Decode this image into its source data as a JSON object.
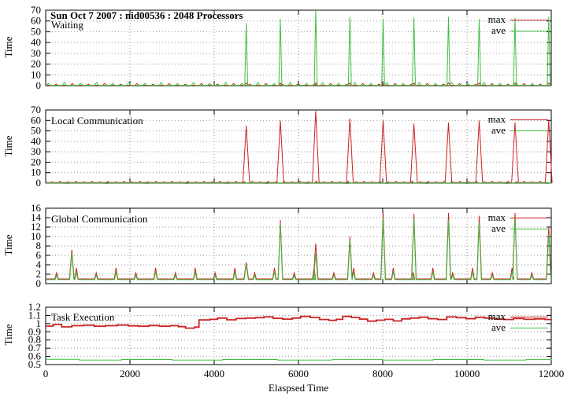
{
  "figure": {
    "title": "Sun Oct 7 2007 : nid00536 : 2048 Processors",
    "xlabel": "Elaspsed Time",
    "ylabel": "Time",
    "legend": [
      {
        "name": "max",
        "key": "max"
      },
      {
        "name": "ave",
        "key": "ave"
      }
    ],
    "colors": {
      "max": "#cc2222",
      "ave": "#3fbf3f",
      "grid": "#909090",
      "axis": "#000000"
    }
  },
  "chart_data": [
    {
      "type": "line",
      "label": "Waiting",
      "xlim": [
        0,
        12000
      ],
      "ylim": [
        0,
        70
      ],
      "xticks": [
        0,
        2000,
        4000,
        6000,
        8000,
        10000,
        12000
      ],
      "yticks": [
        0,
        10,
        20,
        30,
        40,
        50,
        60,
        70
      ],
      "grid": true,
      "legend_position": "top-right",
      "series": [
        {
          "name": "max",
          "base": 0.4,
          "lw": 1,
          "bumps": {
            "from": 250,
            "to": 11900,
            "every": 383,
            "h": 1.7,
            "w": 90
          },
          "spike_w": 80,
          "spikes": [
            [
              4760,
              2.5
            ],
            [
              5570,
              2.5
            ],
            [
              6410,
              2.5
            ],
            [
              7220,
              2.5
            ],
            [
              8010,
              2.5
            ],
            [
              8740,
              2.5
            ],
            [
              9560,
              2.5
            ],
            [
              10290,
              2.5
            ],
            [
              11140,
              2.5
            ],
            [
              11940,
              2.5
            ]
          ]
        },
        {
          "name": "ave",
          "base": 0.35,
          "lw": 1,
          "bumps": {
            "from": 60,
            "to": 11900,
            "every": 383,
            "h": 2.6,
            "w": 90
          },
          "spike_w": 70,
          "spikes": [
            [
              4760,
              58
            ],
            [
              5570,
              62
            ],
            [
              6410,
              70
            ],
            [
              7220,
              64
            ],
            [
              8010,
              62
            ],
            [
              8740,
              63
            ],
            [
              9560,
              64
            ],
            [
              10290,
              62
            ],
            [
              11140,
              63
            ],
            [
              11940,
              64
            ]
          ]
        }
      ]
    },
    {
      "type": "line",
      "label": "Local Communication",
      "xlim": [
        0,
        12000
      ],
      "ylim": [
        0,
        70
      ],
      "xticks": [
        0,
        2000,
        4000,
        6000,
        8000,
        10000,
        12000
      ],
      "yticks": [
        0,
        10,
        20,
        30,
        40,
        50,
        60,
        70
      ],
      "grid": true,
      "legend_position": "top-right",
      "series": [
        {
          "name": "max",
          "base": 0.5,
          "lw": 1,
          "bumps": {
            "from": 150,
            "to": 11900,
            "every": 190,
            "h": 1.6,
            "w": 60
          },
          "spike_w": 160,
          "spikes": [
            [
              4760,
              55
            ],
            [
              5570,
              60
            ],
            [
              6410,
              69
            ],
            [
              7220,
              62
            ],
            [
              8010,
              60
            ],
            [
              8740,
              57
            ],
            [
              9560,
              58
            ],
            [
              10290,
              60
            ],
            [
              11140,
              58
            ],
            [
              11940,
              60
            ]
          ]
        },
        {
          "name": "ave",
          "base": 0.15,
          "lw": 1,
          "bumps": {
            "from": 500,
            "to": 11900,
            "every": 950,
            "h": 0.7,
            "w": 100
          },
          "spike_w": 100,
          "spikes": []
        }
      ]
    },
    {
      "type": "line",
      "label": "Global Communication",
      "xlim": [
        0,
        12000
      ],
      "ylim": [
        0,
        16
      ],
      "xticks": [
        0,
        2000,
        4000,
        6000,
        8000,
        10000,
        12000
      ],
      "yticks": [
        0,
        2,
        4,
        6,
        8,
        10,
        12,
        14,
        16
      ],
      "grid": true,
      "legend_position": "top-right",
      "series": [
        {
          "name": "max",
          "base": 1.0,
          "lw": 1,
          "bumps": {
            "from": 260,
            "to": 11800,
            "every": 470,
            "h": 2.9,
            "w": 80
          },
          "spike_w": 110,
          "spikes": [
            [
              620,
              7.2
            ],
            [
              4760,
              4.5
            ],
            [
              5570,
              13.5
            ],
            [
              6410,
              8.5
            ],
            [
              7220,
              10.0
            ],
            [
              8010,
              15.2
            ],
            [
              8740,
              14.8
            ],
            [
              9560,
              15.0
            ],
            [
              10290,
              14.4
            ],
            [
              11140,
              15.0
            ],
            [
              11940,
              12.0
            ]
          ]
        },
        {
          "name": "ave",
          "base": 0.85,
          "lw": 1,
          "bumps": {
            "from": 260,
            "to": 11800,
            "every": 470,
            "h": 2.2,
            "w": 70
          },
          "spike_w": 100,
          "spikes": [
            [
              620,
              6.5
            ],
            [
              4760,
              4.0
            ],
            [
              5570,
              12.8
            ],
            [
              6410,
              6.5
            ],
            [
              7220,
              9.3
            ],
            [
              8010,
              14.0
            ],
            [
              8740,
              13.8
            ],
            [
              9560,
              13.5
            ],
            [
              10290,
              13.0
            ],
            [
              11140,
              14.0
            ],
            [
              11940,
              10.5
            ]
          ]
        }
      ]
    },
    {
      "type": "line",
      "label": "Task Execution",
      "xlim": [
        0,
        12000
      ],
      "ylim": [
        0.5,
        1.2
      ],
      "xticks": [
        0,
        2000,
        4000,
        6000,
        8000,
        10000,
        12000
      ],
      "yticks": [
        0.5,
        0.6,
        0.7,
        0.8,
        0.9,
        1,
        1.1,
        1.2
      ],
      "grid": true,
      "legend_position": "top-right",
      "series": [
        {
          "name": "max",
          "lw": 1.8,
          "steps": [
            [
              0,
              0.97
            ],
            [
              180,
              0.99
            ],
            [
              380,
              0.96
            ],
            [
              620,
              0.975
            ],
            [
              900,
              0.98
            ],
            [
              1150,
              0.968
            ],
            [
              1420,
              0.975
            ],
            [
              1700,
              0.982
            ],
            [
              1960,
              0.973
            ],
            [
              2200,
              0.968
            ],
            [
              2450,
              0.977
            ],
            [
              2700,
              0.968
            ],
            [
              2950,
              0.975
            ],
            [
              3150,
              0.963
            ],
            [
              3320,
              0.945
            ],
            [
              3530,
              0.957
            ],
            [
              3640,
              1.045
            ],
            [
              3900,
              1.052
            ],
            [
              4080,
              1.068
            ],
            [
              4300,
              1.047
            ],
            [
              4520,
              1.062
            ],
            [
              4750,
              1.068
            ],
            [
              4980,
              1.072
            ],
            [
              5180,
              1.082
            ],
            [
              5400,
              1.065
            ],
            [
              5620,
              1.055
            ],
            [
              5850,
              1.068
            ],
            [
              6050,
              1.088
            ],
            [
              6280,
              1.075
            ],
            [
              6500,
              1.05
            ],
            [
              6720,
              1.04
            ],
            [
              6900,
              1.052
            ],
            [
              7050,
              1.088
            ],
            [
              7250,
              1.075
            ],
            [
              7450,
              1.055
            ],
            [
              7640,
              1.03
            ],
            [
              7850,
              1.042
            ],
            [
              8050,
              1.052
            ],
            [
              8250,
              1.032
            ],
            [
              8450,
              1.057
            ],
            [
              8650,
              1.068
            ],
            [
              8870,
              1.078
            ],
            [
              9080,
              1.06
            ],
            [
              9300,
              1.05
            ],
            [
              9520,
              1.082
            ],
            [
              9750,
              1.072
            ],
            [
              9980,
              1.06
            ],
            [
              10200,
              1.077
            ],
            [
              10420,
              1.068
            ],
            [
              10650,
              1.055
            ],
            [
              10870,
              1.05
            ],
            [
              11100,
              1.062
            ],
            [
              11350,
              1.052
            ],
            [
              11600,
              1.057
            ],
            [
              11850,
              1.05
            ],
            [
              12000,
              1.053
            ]
          ]
        },
        {
          "name": "ave",
          "lw": 1,
          "steps": [
            [
              0,
              0.565
            ],
            [
              800,
              0.556
            ],
            [
              1800,
              0.562
            ],
            [
              3000,
              0.556
            ],
            [
              4200,
              0.562
            ],
            [
              5500,
              0.556
            ],
            [
              6800,
              0.561
            ],
            [
              8000,
              0.556
            ],
            [
              9200,
              0.562
            ],
            [
              10400,
              0.556
            ],
            [
              11400,
              0.561
            ],
            [
              12000,
              0.558
            ]
          ]
        }
      ]
    }
  ]
}
